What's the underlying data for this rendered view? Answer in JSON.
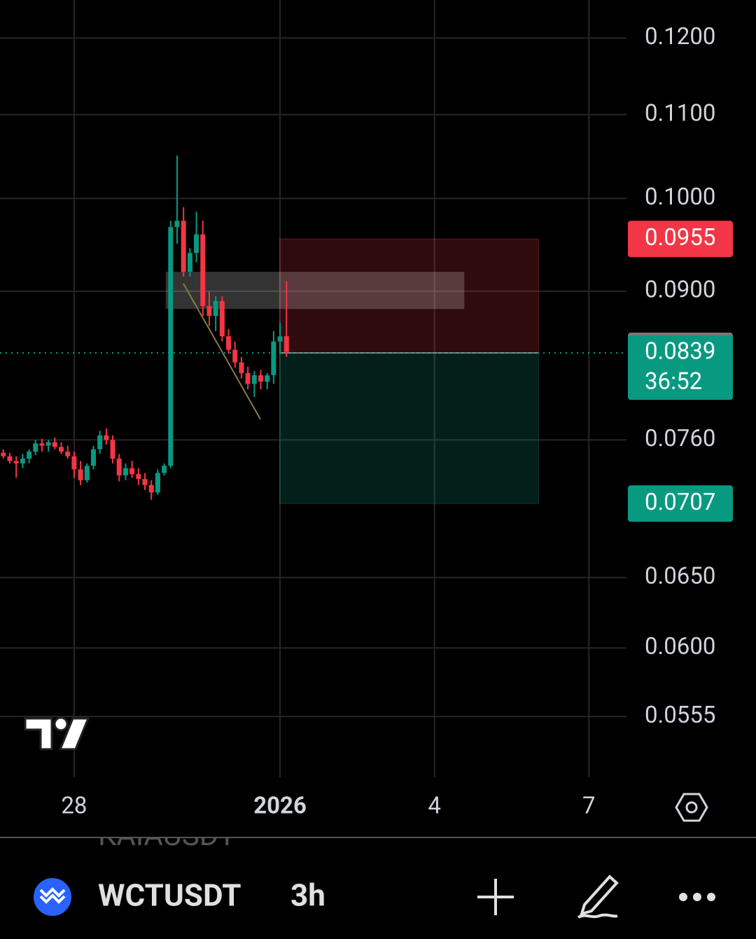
{
  "chart_data": {
    "type": "candlestick",
    "symbol": "WCTUSDT",
    "interval": "3h",
    "x": [
      -1.375,
      -1.25,
      -1.125,
      -1,
      -0.875,
      -0.75,
      -0.625,
      -0.5,
      -0.375,
      -0.25,
      -0.125,
      0,
      0.125,
      0.25,
      0.375,
      0.5,
      0.625,
      0.75,
      0.875,
      1,
      1.125,
      1.25,
      1.375,
      1.5,
      1.625,
      1.75,
      1.875,
      2,
      2.125,
      2.25,
      2.375,
      2.5,
      2.625,
      2.75,
      2.875,
      3,
      3.125,
      3.25,
      3.375,
      3.5,
      3.625,
      3.75,
      3.875,
      4,
      4.125
    ],
    "open": [
      0.0749,
      0.0746,
      0.0742,
      0.074,
      0.0744,
      0.075,
      0.0757,
      0.0755,
      0.0758,
      0.0754,
      0.075,
      0.0746,
      0.0735,
      0.0726,
      0.0738,
      0.0752,
      0.0764,
      0.076,
      0.0744,
      0.073,
      0.0736,
      0.0731,
      0.0727,
      0.0722,
      0.0716,
      0.0732,
      0.0738,
      0.0968,
      0.0975,
      0.092,
      0.094,
      0.096,
      0.0885,
      0.0875,
      0.089,
      0.0855,
      0.0842,
      0.083,
      0.082,
      0.081,
      0.0818,
      0.0812,
      0.0818,
      0.085,
      0.0855
    ],
    "high": [
      0.0752,
      0.0749,
      0.0746,
      0.0748,
      0.0752,
      0.076,
      0.0761,
      0.076,
      0.0762,
      0.0758,
      0.0755,
      0.075,
      0.0742,
      0.074,
      0.0755,
      0.0768,
      0.077,
      0.0764,
      0.0748,
      0.074,
      0.0742,
      0.0736,
      0.0732,
      0.0726,
      0.0735,
      0.074,
      0.0975,
      0.105,
      0.099,
      0.0945,
      0.0985,
      0.0975,
      0.09,
      0.0895,
      0.0895,
      0.0862,
      0.085,
      0.0835,
      0.0826,
      0.0822,
      0.0823,
      0.082,
      0.086,
      0.0868,
      0.091
    ],
    "low": [
      0.0744,
      0.074,
      0.0728,
      0.0736,
      0.074,
      0.0747,
      0.075,
      0.075,
      0.0752,
      0.0748,
      0.0744,
      0.0728,
      0.0722,
      0.0724,
      0.0735,
      0.0748,
      0.0756,
      0.074,
      0.0725,
      0.0726,
      0.0728,
      0.0722,
      0.0718,
      0.071,
      0.0714,
      0.073,
      0.0736,
      0.095,
      0.0915,
      0.0915,
      0.093,
      0.0875,
      0.0865,
      0.086,
      0.085,
      0.0838,
      0.0825,
      0.0815,
      0.0805,
      0.0798,
      0.0805,
      0.0805,
      0.081,
      0.0838,
      0.0835
    ],
    "close": [
      0.0746,
      0.0742,
      0.074,
      0.0744,
      0.075,
      0.0757,
      0.0755,
      0.0758,
      0.0754,
      0.075,
      0.0746,
      0.0735,
      0.0726,
      0.0738,
      0.0752,
      0.0764,
      0.076,
      0.0744,
      0.073,
      0.0736,
      0.0731,
      0.0727,
      0.0722,
      0.0716,
      0.0732,
      0.0738,
      0.0968,
      0.0975,
      0.092,
      0.094,
      0.096,
      0.0885,
      0.0875,
      0.089,
      0.0855,
      0.0842,
      0.083,
      0.082,
      0.081,
      0.0818,
      0.0812,
      0.0818,
      0.085,
      0.0855,
      0.084
    ],
    "up_color": "#089981",
    "down_color": "#f23645",
    "xlim": [
      -1.44,
      10.73
    ],
    "xticks": [
      {
        "value": 0,
        "label": "28"
      },
      {
        "value": 4,
        "label": "2026"
      },
      {
        "value": 7,
        "label": "4"
      },
      {
        "value": 10,
        "label": "7"
      }
    ],
    "ylim": [
      0.0518,
      0.1253
    ],
    "yscale": "log",
    "yticks": [
      {
        "value": 0.12,
        "label": "0.1200"
      },
      {
        "value": 0.11,
        "label": "0.1100"
      },
      {
        "value": 0.1,
        "label": "0.1000"
      },
      {
        "value": 0.09,
        "label": "0.0900"
      },
      {
        "value": 0.076,
        "label": "0.0760"
      },
      {
        "value": 0.065,
        "label": "0.0650"
      },
      {
        "value": 0.06,
        "label": "0.0600"
      },
      {
        "value": 0.0555,
        "label": "0.0555"
      }
    ],
    "grid": true,
    "price_labels": [
      {
        "value": 0.0955,
        "color": "#f23645"
      },
      {
        "value": 0.0841,
        "color": "#787878"
      },
      {
        "value": 0.0839,
        "color": "#089981",
        "countdown": "36:52"
      },
      {
        "value": 0.0707,
        "color": "#089981"
      }
    ],
    "position": {
      "x": [
        3.99,
        9.02
      ],
      "stop": 0.0955,
      "entry": 0.0839,
      "target": 0.0707
    },
    "rectangle": {
      "x": [
        1.78,
        7.58
      ],
      "y": [
        0.0882,
        0.092
      ]
    },
    "trend_line": {
      "x": [
        2.12,
        3.62
      ],
      "y": [
        0.0908,
        0.0778
      ]
    }
  },
  "watchlist_peek": "KAIAUSDT"
}
